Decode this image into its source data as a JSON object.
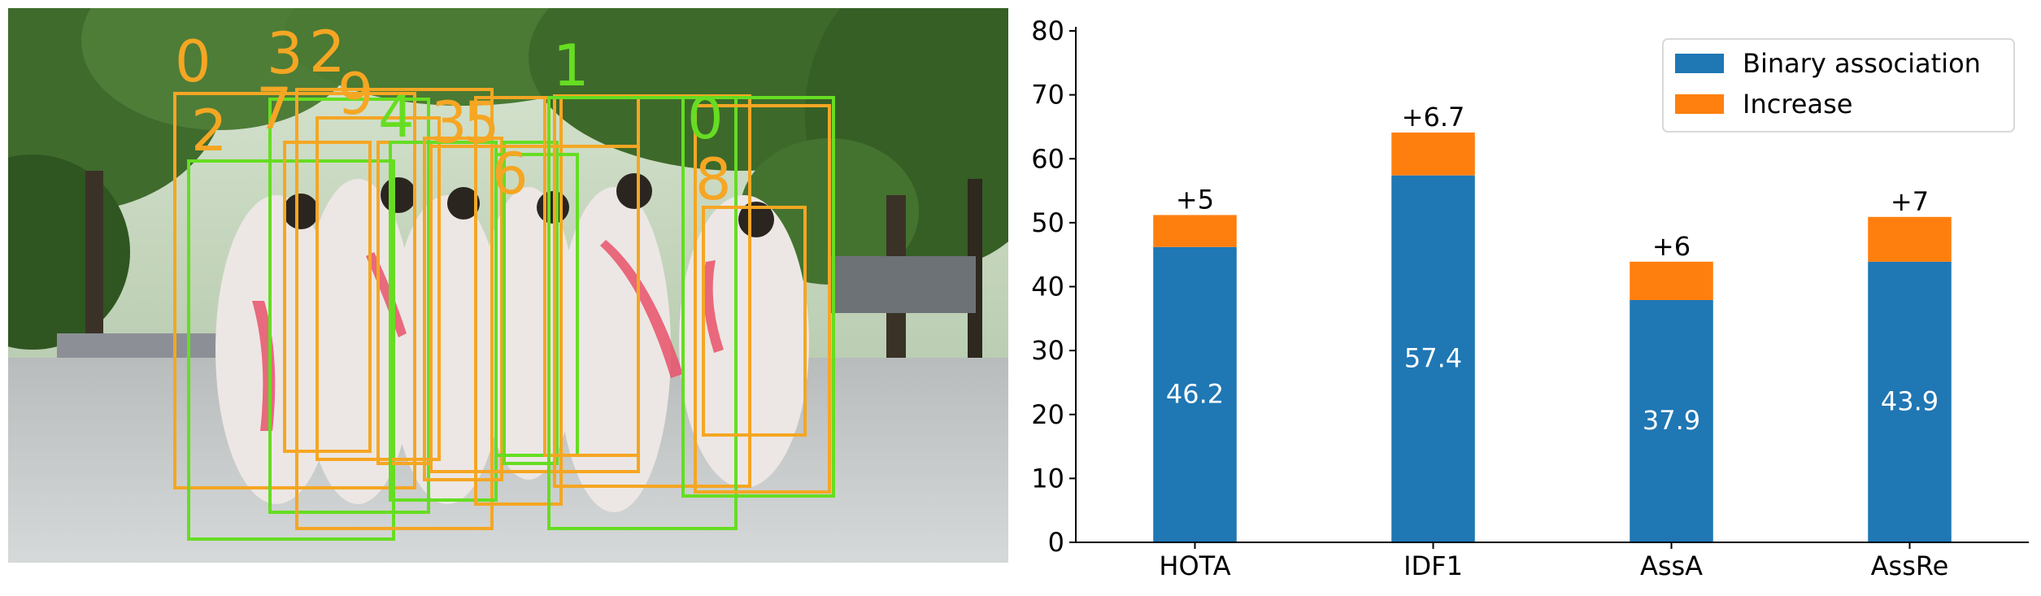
{
  "photo": {
    "track_ids": [
      {
        "label": "0",
        "color": "#f5a623"
      },
      {
        "label": "2",
        "color": "#f5a623"
      },
      {
        "label": "3",
        "color": "#f5a623"
      },
      {
        "label": "2",
        "color": "#f5a623"
      },
      {
        "label": "7",
        "color": "#f5a623"
      },
      {
        "label": "9",
        "color": "#f5a623"
      },
      {
        "label": "4",
        "color": "#66dd22"
      },
      {
        "label": "3",
        "color": "#f5a623"
      },
      {
        "label": "5",
        "color": "#f5a623"
      },
      {
        "label": "1",
        "color": "#66dd22"
      },
      {
        "label": "6",
        "color": "#f5a623"
      },
      {
        "label": "0",
        "color": "#66dd22"
      },
      {
        "label": "8",
        "color": "#f5a623"
      }
    ],
    "box_colors": {
      "orange": "#f5a623",
      "green": "#66dd22"
    }
  },
  "chart_data": {
    "type": "bar",
    "stacked": true,
    "categories": [
      "HOTA",
      "IDF1",
      "AssA",
      "AssRe"
    ],
    "series": [
      {
        "name": "Binary association",
        "color": "#1f77b4",
        "values": [
          46.2,
          57.4,
          37.9,
          43.9
        ]
      },
      {
        "name": "Increase",
        "color": "#ff7f0e",
        "values": [
          5,
          6.7,
          6,
          7
        ]
      }
    ],
    "base_labels": [
      "46.2",
      "57.4",
      "37.9",
      "43.9"
    ],
    "increase_labels": [
      "+5",
      "+6.7",
      "+6",
      "+7"
    ],
    "yticks": [
      "0",
      "10",
      "20",
      "30",
      "40",
      "50",
      "60",
      "70",
      "80"
    ],
    "ylim": [
      0,
      80
    ],
    "legend_position": "top-right",
    "grid": false
  }
}
